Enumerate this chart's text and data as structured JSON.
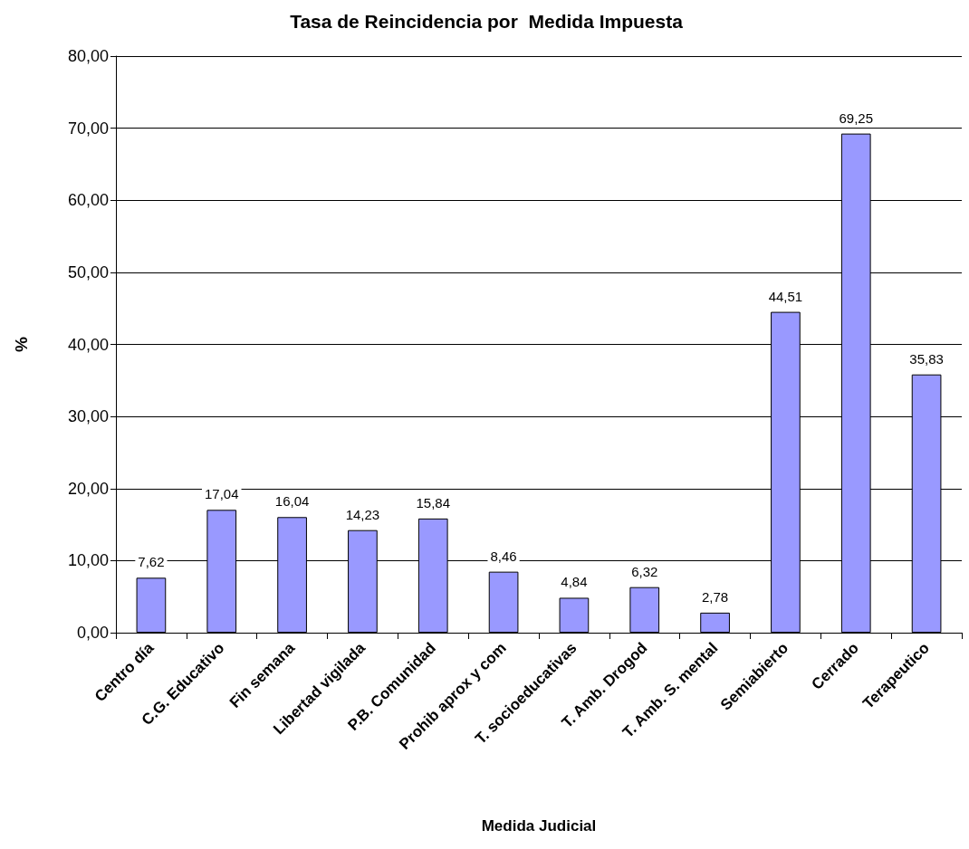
{
  "chart_data": {
    "type": "bar",
    "title": "Tasa de Reincidencia por  Medida Impuesta",
    "xlabel": "Medida Judicial",
    "ylabel": "%",
    "categories": [
      "Centro día",
      "C.G. Educativo",
      "Fin semana",
      "Libertad vigilada",
      "P.B. Comunidad",
      "Prohib aprox y com",
      "T. socioeducativas",
      "T. Amb. Drogod",
      "T. Amb. S. mental",
      "Semiabierto",
      "Cerrado",
      "Terapeutico"
    ],
    "values": [
      7.62,
      17.04,
      16.04,
      14.23,
      15.84,
      8.46,
      4.84,
      6.32,
      2.78,
      44.51,
      69.25,
      35.83
    ],
    "value_labels": [
      "7,62",
      "17,04",
      "16,04",
      "14,23",
      "15,84",
      "8,46",
      "4,84",
      "6,32",
      "2,78",
      "44,51",
      "69,25",
      "35,83"
    ],
    "color": "#9999ff",
    "ylim": [
      0,
      80
    ],
    "yticks": [
      {
        "value": 0,
        "label": "0,00"
      },
      {
        "value": 10,
        "label": "10,00"
      },
      {
        "value": 20,
        "label": "20,00"
      },
      {
        "value": 30,
        "label": "30,00"
      },
      {
        "value": 40,
        "label": "40,00"
      },
      {
        "value": 50,
        "label": "50,00"
      },
      {
        "value": 60,
        "label": "60,00"
      },
      {
        "value": 70,
        "label": "70,00"
      },
      {
        "value": 80,
        "label": "80,00"
      }
    ],
    "grid": "y"
  }
}
